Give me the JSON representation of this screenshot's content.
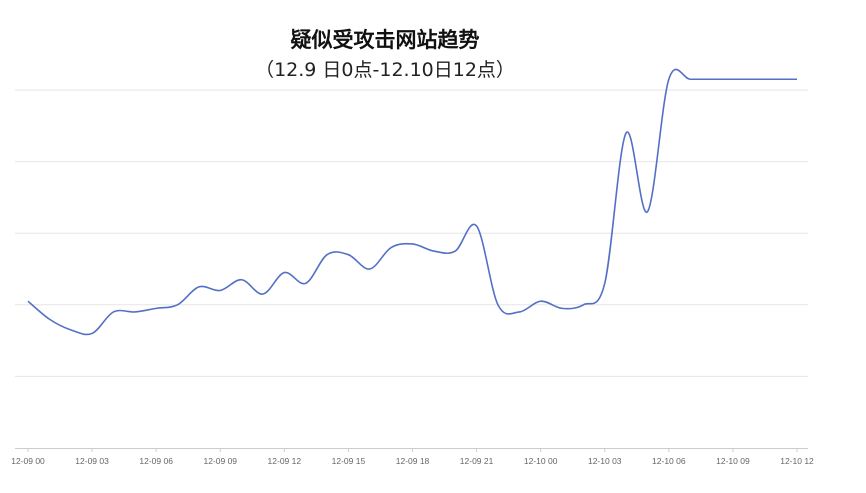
{
  "chart_data": {
    "type": "line",
    "title": "疑似受攻击网站趋势",
    "subtitle": "（12.9 日0点-12.10日12点）",
    "xlabel": "",
    "ylabel": "",
    "y_axis_labels_shown": false,
    "grid": true,
    "legend": "none",
    "line_color": "#5470c6",
    "ylim": [
      0,
      100
    ],
    "x_tick_labels": [
      "12-09 00",
      "12-09 03",
      "12-09 06",
      "12-09 09",
      "12-09 12",
      "12-09 15",
      "12-09 18",
      "12-09 21",
      "12-10 00",
      "12-10 03",
      "12-10 06",
      "12-10 09",
      "12-10 12"
    ],
    "series": [
      {
        "x": [
          0,
          1,
          2,
          3,
          4,
          5,
          6,
          7,
          8,
          9,
          10,
          11,
          12,
          13,
          14,
          15,
          16,
          17,
          18,
          19,
          20,
          21,
          22,
          23,
          24,
          25,
          26,
          27,
          28,
          29,
          30,
          31,
          32,
          33,
          34,
          35,
          36
        ],
        "values": [
          41,
          36,
          33,
          32,
          38,
          38,
          39,
          40,
          45,
          44,
          47,
          43,
          49,
          46,
          54,
          54,
          50,
          56,
          57,
          55,
          55,
          62,
          40,
          38,
          41,
          39,
          40,
          46,
          88,
          66,
          103,
          103,
          103,
          103,
          103,
          103,
          103
        ]
      }
    ]
  }
}
